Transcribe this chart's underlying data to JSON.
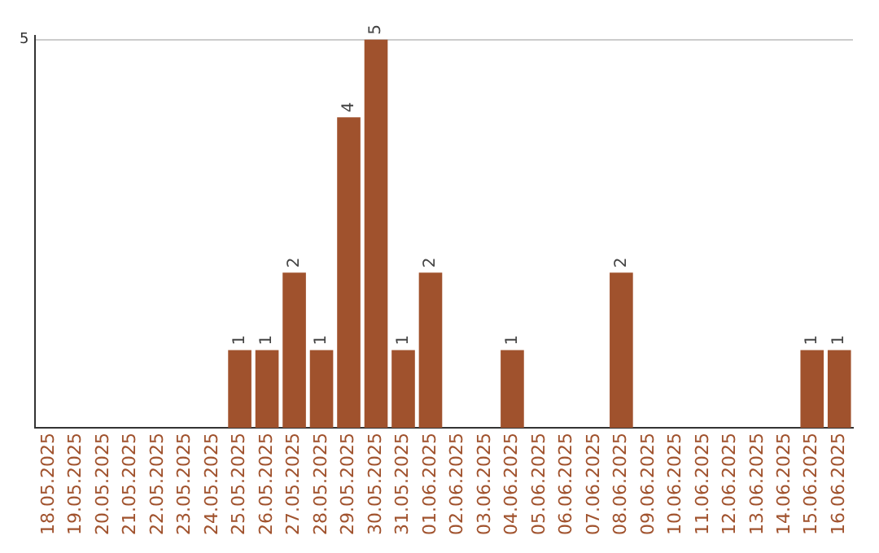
{
  "chart_data": {
    "type": "bar",
    "categories": [
      "18.05.2025",
      "19.05.2025",
      "20.05.2025",
      "21.05.2025",
      "22.05.2025",
      "23.05.2025",
      "24.05.2025",
      "25.05.2025",
      "26.05.2025",
      "27.05.2025",
      "28.05.2025",
      "29.05.2025",
      "30.05.2025",
      "31.05.2025",
      "01.06.2025",
      "02.06.2025",
      "03.06.2025",
      "04.06.2025",
      "05.06.2025",
      "06.06.2025",
      "07.06.2025",
      "08.06.2025",
      "09.06.2025",
      "10.06.2025",
      "11.06.2025",
      "12.06.2025",
      "13.06.2025",
      "14.06.2025",
      "15.06.2025",
      "16.06.2025"
    ],
    "values": [
      0,
      0,
      0,
      0,
      0,
      0,
      0,
      1,
      1,
      2,
      1,
      4,
      5,
      1,
      2,
      0,
      0,
      1,
      0,
      0,
      0,
      2,
      0,
      0,
      0,
      0,
      0,
      0,
      1,
      1
    ],
    "value_labels": [
      null,
      null,
      null,
      null,
      null,
      null,
      null,
      "1",
      "1",
      "2",
      "1",
      "4",
      "5",
      "1",
      "2",
      null,
      null,
      "1",
      null,
      null,
      null,
      "2",
      null,
      null,
      null,
      null,
      null,
      null,
      "1",
      "1"
    ],
    "color": "#a0522d",
    "ylim": [
      0,
      5.05
    ],
    "yticks": [
      5
    ],
    "grid": "y",
    "legend": false
  }
}
